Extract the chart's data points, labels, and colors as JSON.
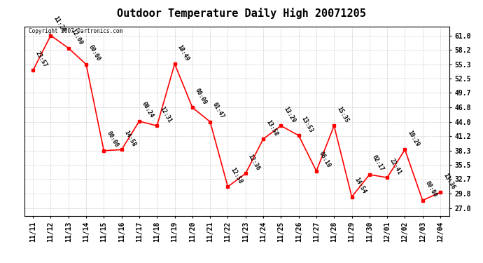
{
  "title": "Outdoor Temperature Daily High 20071205",
  "copyright_text": "Copyright 2007 Dartronics.com",
  "x_labels": [
    "11/11",
    "11/12",
    "11/13",
    "11/14",
    "11/15",
    "11/16",
    "11/17",
    "11/18",
    "11/19",
    "11/20",
    "11/21",
    "11/22",
    "11/23",
    "11/24",
    "11/25",
    "11/26",
    "11/27",
    "11/28",
    "11/29",
    "11/30",
    "12/01",
    "12/02",
    "12/03",
    "12/04"
  ],
  "y_values": [
    54.1,
    61.0,
    58.5,
    55.3,
    38.3,
    38.5,
    44.1,
    43.2,
    55.4,
    46.8,
    44.0,
    31.2,
    33.8,
    40.6,
    43.2,
    41.3,
    34.3,
    43.2,
    29.2,
    33.6,
    33.0,
    38.5,
    28.5,
    30.1
  ],
  "point_labels": [
    "23:57",
    "11:20",
    "12:00",
    "00:00",
    "00:00",
    "14:58",
    "08:24",
    "12:31",
    "18:49",
    "00:00",
    "01:47",
    "12:58",
    "12:36",
    "13:58",
    "13:29",
    "13:53",
    "06:10",
    "15:35",
    "14:54",
    "02:17",
    "22:41",
    "10:29",
    "00:00",
    "13:36"
  ],
  "y_ticks": [
    27.0,
    29.8,
    32.7,
    35.5,
    38.3,
    41.2,
    44.0,
    46.8,
    49.7,
    52.5,
    55.3,
    58.2,
    61.0
  ],
  "line_color": "#ff0000",
  "marker_color": "#ff0000",
  "marker_size": 3,
  "grid_color": "#cccccc",
  "bg_color": "#ffffff",
  "title_fontsize": 11,
  "tick_fontsize": 7,
  "point_label_fontsize": 6
}
